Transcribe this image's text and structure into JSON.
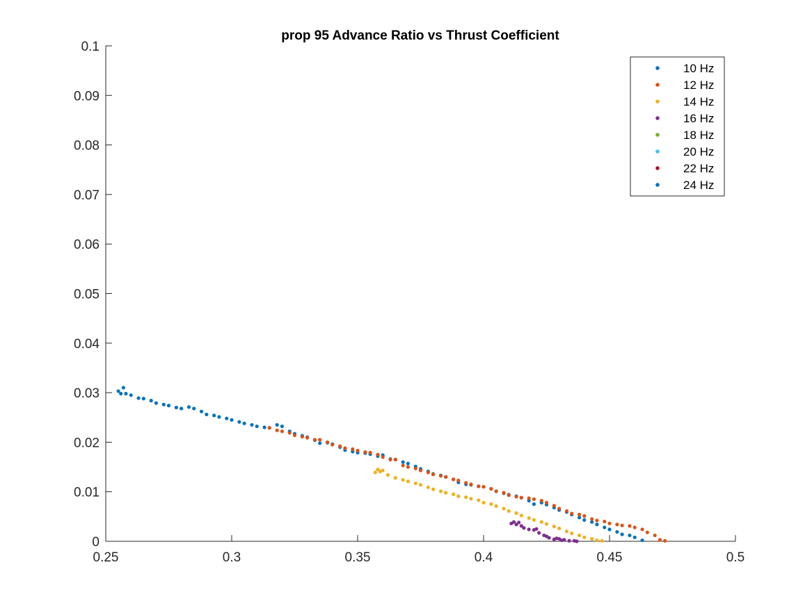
{
  "chart_data": {
    "type": "scatter",
    "title": "prop 95 Advance Ratio vs Thrust Coefficient",
    "xlabel": "",
    "ylabel": "",
    "xlim": [
      0.25,
      0.5
    ],
    "ylim": [
      0,
      0.1
    ],
    "xticks": [
      0.25,
      0.3,
      0.35,
      0.4,
      0.45,
      0.5
    ],
    "xtick_labels": [
      "0.25",
      "0.3",
      "0.35",
      "0.4",
      "0.45",
      "0.5"
    ],
    "yticks": [
      0,
      0.01,
      0.02,
      0.03,
      0.04,
      0.05,
      0.06,
      0.07,
      0.08,
      0.09,
      0.1
    ],
    "ytick_labels": [
      "0",
      "0.01",
      "0.02",
      "0.03",
      "0.04",
      "0.05",
      "0.06",
      "0.07",
      "0.08",
      "0.09",
      "0.1"
    ],
    "grid": false,
    "legend_position": "top-right",
    "series": [
      {
        "name": "10 Hz",
        "color": "#0072BD",
        "x": [
          0.255,
          0.256,
          0.257,
          0.258,
          0.26,
          0.263,
          0.265,
          0.268,
          0.27,
          0.273,
          0.275,
          0.278,
          0.28,
          0.283,
          0.285,
          0.288,
          0.29,
          0.293,
          0.295,
          0.298,
          0.3,
          0.303,
          0.305,
          0.308,
          0.31,
          0.313,
          0.315,
          0.318,
          0.32,
          0.323,
          0.325,
          0.328,
          0.33,
          0.333,
          0.335,
          0.338,
          0.34,
          0.343,
          0.345,
          0.348,
          0.35,
          0.353,
          0.355,
          0.358,
          0.36,
          0.363,
          0.365,
          0.368,
          0.37,
          0.373,
          0.375,
          0.378,
          0.38,
          0.383,
          0.385,
          0.388,
          0.39,
          0.393,
          0.395,
          0.398,
          0.4,
          0.403,
          0.405,
          0.408,
          0.41,
          0.413,
          0.415,
          0.418,
          0.42,
          0.423,
          0.425,
          0.428,
          0.43,
          0.433,
          0.435,
          0.438,
          0.44,
          0.443,
          0.445,
          0.448,
          0.45,
          0.453,
          0.455,
          0.458,
          0.46,
          0.463
        ],
        "y": [
          0.0303,
          0.0298,
          0.031,
          0.0298,
          0.0295,
          0.0289,
          0.0288,
          0.0284,
          0.0279,
          0.0276,
          0.0274,
          0.027,
          0.0268,
          0.0271,
          0.0268,
          0.0262,
          0.0256,
          0.0254,
          0.0251,
          0.0248,
          0.0245,
          0.0241,
          0.0238,
          0.0235,
          0.0232,
          0.023,
          0.0229,
          0.0235,
          0.0232,
          0.0222,
          0.0217,
          0.0213,
          0.021,
          0.0204,
          0.0198,
          0.0199,
          0.0196,
          0.019,
          0.0184,
          0.0181,
          0.0179,
          0.0178,
          0.0176,
          0.0172,
          0.0174,
          0.0166,
          0.0165,
          0.016,
          0.0157,
          0.0151,
          0.0146,
          0.0141,
          0.0136,
          0.0133,
          0.013,
          0.0125,
          0.0119,
          0.0115,
          0.0114,
          0.0111,
          0.011,
          0.0106,
          0.0101,
          0.0097,
          0.0094,
          0.0091,
          0.0088,
          0.0082,
          0.0075,
          0.0078,
          0.0074,
          0.0068,
          0.0063,
          0.0059,
          0.0054,
          0.0048,
          0.0043,
          0.0039,
          0.0034,
          0.0028,
          0.0024,
          0.0019,
          0.0014,
          0.0012,
          0.0008,
          0.0002
        ]
      },
      {
        "name": "12 Hz",
        "color": "#D95319",
        "x": [
          0.315,
          0.318,
          0.32,
          0.323,
          0.325,
          0.328,
          0.33,
          0.333,
          0.335,
          0.338,
          0.34,
          0.343,
          0.345,
          0.348,
          0.35,
          0.353,
          0.355,
          0.358,
          0.36,
          0.363,
          0.365,
          0.368,
          0.37,
          0.373,
          0.375,
          0.378,
          0.38,
          0.383,
          0.385,
          0.388,
          0.39,
          0.393,
          0.395,
          0.398,
          0.4,
          0.403,
          0.405,
          0.408,
          0.41,
          0.413,
          0.415,
          0.418,
          0.42,
          0.423,
          0.425,
          0.428,
          0.43,
          0.433,
          0.435,
          0.438,
          0.44,
          0.443,
          0.445,
          0.448,
          0.45,
          0.453,
          0.455,
          0.458,
          0.46,
          0.463,
          0.465,
          0.468,
          0.47,
          0.472
        ],
        "y": [
          0.0229,
          0.0224,
          0.0222,
          0.0219,
          0.0214,
          0.0211,
          0.0209,
          0.0205,
          0.0205,
          0.02,
          0.0195,
          0.0192,
          0.0188,
          0.0186,
          0.0183,
          0.018,
          0.0179,
          0.0175,
          0.017,
          0.0165,
          0.0165,
          0.0153,
          0.015,
          0.0147,
          0.0143,
          0.0139,
          0.0135,
          0.0132,
          0.013,
          0.0125,
          0.0123,
          0.0118,
          0.0115,
          0.0111,
          0.011,
          0.0106,
          0.0101,
          0.0098,
          0.0093,
          0.009,
          0.0088,
          0.0087,
          0.0085,
          0.0082,
          0.0078,
          0.0072,
          0.0066,
          0.0061,
          0.0056,
          0.0054,
          0.0051,
          0.0045,
          0.0042,
          0.004,
          0.0036,
          0.0034,
          0.0032,
          0.0031,
          0.0028,
          0.0024,
          0.0018,
          0.0012,
          0.0003,
          0.0001
        ]
      },
      {
        "name": "14 Hz",
        "color": "#EDB120",
        "x": [
          0.357,
          0.358,
          0.359,
          0.36,
          0.362,
          0.365,
          0.368,
          0.37,
          0.373,
          0.375,
          0.378,
          0.38,
          0.383,
          0.385,
          0.388,
          0.39,
          0.393,
          0.395,
          0.398,
          0.4,
          0.403,
          0.405,
          0.408,
          0.41,
          0.413,
          0.415,
          0.418,
          0.42,
          0.423,
          0.425,
          0.428,
          0.43,
          0.433,
          0.435,
          0.438,
          0.44,
          0.443,
          0.445,
          0.447
        ],
        "y": [
          0.0139,
          0.0145,
          0.0141,
          0.0143,
          0.0134,
          0.0128,
          0.0124,
          0.0121,
          0.0117,
          0.0114,
          0.0109,
          0.0105,
          0.0101,
          0.0098,
          0.0095,
          0.0091,
          0.0089,
          0.0086,
          0.0083,
          0.0078,
          0.0075,
          0.0071,
          0.0066,
          0.0061,
          0.0057,
          0.0052,
          0.0047,
          0.0043,
          0.0039,
          0.0035,
          0.003,
          0.0026,
          0.002,
          0.0016,
          0.0012,
          0.0008,
          0.0005,
          0.0002,
          0.0001
        ]
      },
      {
        "name": "16 Hz",
        "color": "#7E2F8E",
        "x": [
          0.411,
          0.412,
          0.413,
          0.414,
          0.415,
          0.416,
          0.418,
          0.42,
          0.421,
          0.422,
          0.424,
          0.425,
          0.426,
          0.428,
          0.429,
          0.43,
          0.431,
          0.432,
          0.434,
          0.436,
          0.437
        ],
        "y": [
          0.0036,
          0.0039,
          0.0034,
          0.0038,
          0.0031,
          0.0027,
          0.0024,
          0.0023,
          0.0025,
          0.0017,
          0.0012,
          0.001,
          0.0007,
          0.0004,
          0.0006,
          0.0005,
          0.0002,
          0.0003,
          0.0001,
          0.0001,
          0.0
        ]
      },
      {
        "name": "18 Hz",
        "color": "#77AC30",
        "x": [],
        "y": []
      },
      {
        "name": "20 Hz",
        "color": "#4DBEEE",
        "x": [],
        "y": []
      },
      {
        "name": "22 Hz",
        "color": "#A2142F",
        "x": [],
        "y": []
      },
      {
        "name": "24 Hz",
        "color": "#0072BD",
        "x": [],
        "y": []
      }
    ]
  }
}
